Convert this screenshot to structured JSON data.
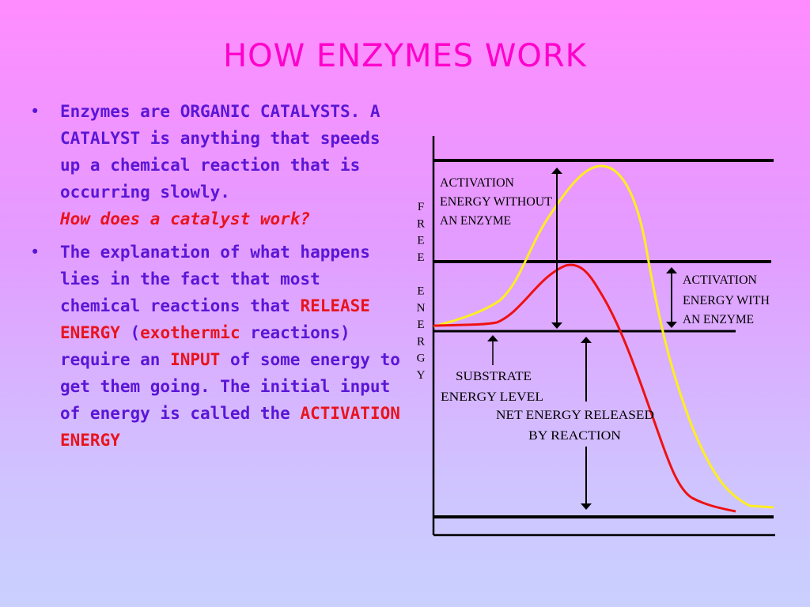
{
  "title": "HOW ENZYMES WORK",
  "bullets": {
    "b1": {
      "text": "Enzymes are ORGANIC CATALYSTS. A CATALYST is anything that speeds up a chemical reaction that is occurring slowly.",
      "question": "How does a catalyst work?"
    },
    "b2": {
      "t1": "The explanation of what happens lies in the fact that most chemical reactions that ",
      "release": "RELEASE ENERGY",
      "t2": " (",
      "exothermic": "exothermic",
      "t3": " reactions) require an ",
      "input": "INPUT",
      "t4": " of some energy to get them going. The initial input of energy is called the ",
      "activation": "ACTIVATION ENERGY"
    }
  },
  "diagram": {
    "y_axis_label": [
      "F",
      "R",
      "E",
      "E",
      "",
      "E",
      "N",
      "E",
      "R",
      "G",
      "Y"
    ],
    "labels": {
      "without_1": "ACTIVATION",
      "without_2": "ENERGY WITHOUT",
      "without_3": "AN ENZYME",
      "with_1": "ACTIVATION",
      "with_2": "ENERGY WITH",
      "with_3": "AN ENZYME",
      "substrate_1": "SUBSTRATE",
      "substrate_2": "ENERGY LEVEL",
      "net_1": "NET ENERGY RELEASED",
      "net_2": "BY REACTION"
    },
    "colors": {
      "without_enzyme": "#ffee22",
      "with_enzyme": "#ee1111",
      "lines": "#000000"
    }
  }
}
